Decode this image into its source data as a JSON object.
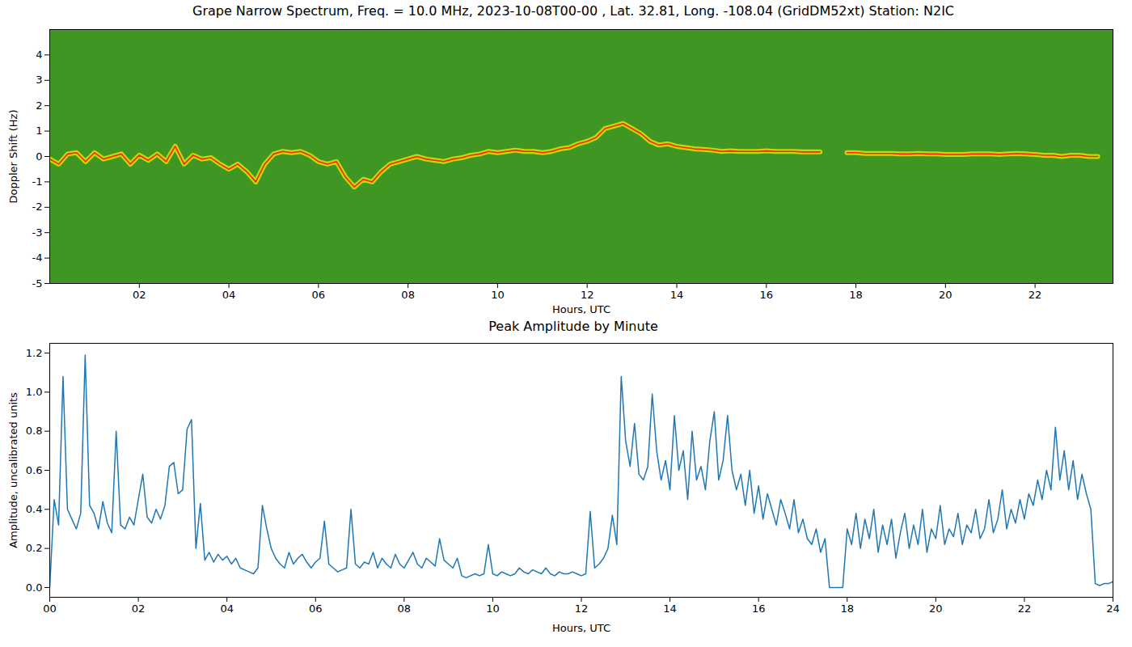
{
  "chart_data": [
    {
      "type": "line",
      "title": "Grape Narrow Spectrum, Freq. = 10.0 MHz, 2023-10-08T00-00 , Lat.  32.81, Long. -108.04 (GridDM52xt) Station: N2IC",
      "x_label": "Hours, UTC",
      "y_label": "Doppler Shift (Hz)",
      "color": "#ff2200",
      "xlim": [
        0,
        23.74
      ],
      "ylim": [
        -5,
        5
      ],
      "xticks": [
        {
          "value": 2,
          "label": "02"
        },
        {
          "value": 4,
          "label": "04"
        },
        {
          "value": 6,
          "label": "06"
        },
        {
          "value": 8,
          "label": "08"
        },
        {
          "value": 10,
          "label": "10"
        },
        {
          "value": 12,
          "label": "12"
        },
        {
          "value": 14,
          "label": "14"
        },
        {
          "value": 16,
          "label": "16"
        },
        {
          "value": 18,
          "label": "18"
        },
        {
          "value": 20,
          "label": "20"
        },
        {
          "value": 22,
          "label": "22"
        }
      ],
      "yticks": [
        -5,
        -4,
        -3,
        -2,
        -1,
        0,
        1,
        2,
        3,
        4
      ],
      "x": [
        0.0,
        0.2,
        0.4,
        0.6,
        0.8,
        1.0,
        1.2,
        1.4,
        1.6,
        1.8,
        2.0,
        2.2,
        2.4,
        2.6,
        2.8,
        3.0,
        3.2,
        3.4,
        3.6,
        3.8,
        4.0,
        4.2,
        4.4,
        4.6,
        4.8,
        5.0,
        5.2,
        5.4,
        5.6,
        5.8,
        6.0,
        6.2,
        6.4,
        6.6,
        6.8,
        7.0,
        7.2,
        7.4,
        7.6,
        7.8,
        8.0,
        8.2,
        8.4,
        8.6,
        8.8,
        9.0,
        9.2,
        9.4,
        9.6,
        9.8,
        10.0,
        10.2,
        10.4,
        10.6,
        10.8,
        11.0,
        11.2,
        11.4,
        11.6,
        11.8,
        12.0,
        12.2,
        12.4,
        12.6,
        12.8,
        13.0,
        13.2,
        13.4,
        13.6,
        13.8,
        14.0,
        14.2,
        14.4,
        14.6,
        14.8,
        15.0,
        15.2,
        15.4,
        15.6,
        15.8,
        16.0,
        16.2,
        16.4,
        16.6,
        16.8,
        17.0,
        17.2,
        17.4,
        17.6,
        17.8,
        18.0,
        18.2,
        18.4,
        18.6,
        18.8,
        19.0,
        19.2,
        19.4,
        19.6,
        19.8,
        20.0,
        20.2,
        20.4,
        20.6,
        20.8,
        21.0,
        21.2,
        21.4,
        21.6,
        21.8,
        22.0,
        22.2,
        22.4,
        22.6,
        22.8,
        23.0,
        23.2,
        23.4
      ],
      "values": [
        -0.1,
        -0.3,
        0.1,
        0.15,
        -0.2,
        0.15,
        -0.1,
        0.0,
        0.1,
        -0.3,
        0.05,
        -0.15,
        0.1,
        -0.2,
        0.4,
        -0.3,
        0.05,
        -0.1,
        -0.05,
        -0.3,
        -0.5,
        -0.3,
        -0.6,
        -1.0,
        -0.3,
        0.1,
        0.2,
        0.15,
        0.2,
        0.05,
        -0.2,
        -0.3,
        -0.2,
        -0.8,
        -1.2,
        -0.9,
        -1.0,
        -0.6,
        -0.3,
        -0.2,
        -0.1,
        0.0,
        -0.1,
        -0.15,
        -0.2,
        -0.1,
        -0.05,
        0.05,
        0.1,
        0.2,
        0.15,
        0.2,
        0.25,
        0.2,
        0.2,
        0.15,
        0.2,
        0.3,
        0.35,
        0.5,
        0.6,
        0.75,
        1.1,
        1.2,
        1.3,
        1.1,
        0.9,
        0.6,
        0.45,
        0.5,
        0.4,
        0.35,
        0.3,
        0.28,
        0.25,
        0.2,
        0.22,
        0.2,
        0.2,
        0.2,
        0.22,
        0.2,
        0.2,
        0.2,
        0.18,
        0.18,
        0.18,
        null,
        null,
        0.15,
        0.15,
        0.12,
        0.12,
        0.12,
        0.12,
        0.1,
        0.1,
        0.12,
        0.1,
        0.1,
        0.08,
        0.08,
        0.08,
        0.1,
        0.1,
        0.1,
        0.08,
        0.1,
        0.12,
        0.1,
        0.08,
        0.05,
        0.05,
        0.0,
        0.05,
        0.05,
        0.0,
        0.0
      ]
    },
    {
      "type": "line",
      "title": "Peak Amplitude by Minute",
      "x_label": "Hours, UTC",
      "y_label": "Amplitude, uncalibrated units",
      "color": "#1f77b4",
      "xlim": [
        0,
        24
      ],
      "ylim": [
        -0.05,
        1.25
      ],
      "xticks": [
        {
          "value": 0,
          "label": "00"
        },
        {
          "value": 2,
          "label": "02"
        },
        {
          "value": 4,
          "label": "04"
        },
        {
          "value": 6,
          "label": "06"
        },
        {
          "value": 8,
          "label": "08"
        },
        {
          "value": 10,
          "label": "10"
        },
        {
          "value": 12,
          "label": "12"
        },
        {
          "value": 14,
          "label": "14"
        },
        {
          "value": 16,
          "label": "16"
        },
        {
          "value": 18,
          "label": "18"
        },
        {
          "value": 20,
          "label": "20"
        },
        {
          "value": 22,
          "label": "22"
        },
        {
          "value": 24,
          "label": "24"
        }
      ],
      "yticks": [
        {
          "value": 0,
          "label": "0.0"
        },
        0.2,
        0.4,
        0.6,
        0.8,
        {
          "value": 1,
          "label": "1.0"
        },
        1.2
      ],
      "x": [
        0.0,
        0.1,
        0.2,
        0.3,
        0.4,
        0.5,
        0.6,
        0.7,
        0.8,
        0.9,
        1.0,
        1.1,
        1.2,
        1.3,
        1.4,
        1.5,
        1.6,
        1.7,
        1.8,
        1.9,
        2.0,
        2.1,
        2.2,
        2.3,
        2.4,
        2.5,
        2.6,
        2.7,
        2.8,
        2.9,
        3.0,
        3.1,
        3.2,
        3.3,
        3.4,
        3.5,
        3.6,
        3.7,
        3.8,
        3.9,
        4.0,
        4.1,
        4.2,
        4.3,
        4.4,
        4.5,
        4.6,
        4.7,
        4.8,
        4.9,
        5.0,
        5.1,
        5.2,
        5.3,
        5.4,
        5.5,
        5.6,
        5.7,
        5.8,
        5.9,
        6.0,
        6.1,
        6.2,
        6.3,
        6.4,
        6.5,
        6.6,
        6.7,
        6.8,
        6.9,
        7.0,
        7.1,
        7.2,
        7.3,
        7.4,
        7.5,
        7.6,
        7.7,
        7.8,
        7.9,
        8.0,
        8.1,
        8.2,
        8.3,
        8.4,
        8.5,
        8.6,
        8.7,
        8.8,
        8.9,
        9.0,
        9.1,
        9.2,
        9.3,
        9.4,
        9.5,
        9.6,
        9.7,
        9.8,
        9.9,
        10.0,
        10.1,
        10.2,
        10.3,
        10.4,
        10.5,
        10.6,
        10.7,
        10.8,
        10.9,
        11.0,
        11.1,
        11.2,
        11.3,
        11.4,
        11.5,
        11.6,
        11.7,
        11.8,
        11.9,
        12.0,
        12.1,
        12.2,
        12.3,
        12.4,
        12.5,
        12.6,
        12.7,
        12.8,
        12.9,
        13.0,
        13.1,
        13.2,
        13.3,
        13.4,
        13.5,
        13.6,
        13.7,
        13.8,
        13.9,
        14.0,
        14.1,
        14.2,
        14.3,
        14.4,
        14.5,
        14.6,
        14.7,
        14.8,
        14.9,
        15.0,
        15.1,
        15.2,
        15.3,
        15.4,
        15.5,
        15.6,
        15.7,
        15.8,
        15.9,
        16.0,
        16.1,
        16.2,
        16.3,
        16.4,
        16.5,
        16.6,
        16.7,
        16.8,
        16.9,
        17.0,
        17.1,
        17.2,
        17.3,
        17.4,
        17.5,
        17.6,
        17.7,
        17.8,
        17.9,
        18.0,
        18.1,
        18.2,
        18.3,
        18.4,
        18.5,
        18.6,
        18.7,
        18.8,
        18.9,
        19.0,
        19.1,
        19.2,
        19.3,
        19.4,
        19.5,
        19.6,
        19.7,
        19.8,
        19.9,
        20.0,
        20.1,
        20.2,
        20.3,
        20.4,
        20.5,
        20.6,
        20.7,
        20.8,
        20.9,
        21.0,
        21.1,
        21.2,
        21.3,
        21.4,
        21.5,
        21.6,
        21.7,
        21.8,
        21.9,
        22.0,
        22.1,
        22.2,
        22.3,
        22.4,
        22.5,
        22.6,
        22.7,
        22.8,
        22.9,
        23.0,
        23.1,
        23.2,
        23.3,
        23.4,
        23.5,
        23.6,
        23.7,
        23.8,
        23.9,
        24.0
      ],
      "values": [
        0.0,
        0.45,
        0.32,
        1.08,
        0.4,
        0.35,
        0.3,
        0.38,
        1.19,
        0.42,
        0.38,
        0.3,
        0.44,
        0.33,
        0.28,
        0.8,
        0.32,
        0.3,
        0.36,
        0.32,
        0.45,
        0.58,
        0.36,
        0.33,
        0.4,
        0.35,
        0.42,
        0.62,
        0.64,
        0.48,
        0.5,
        0.81,
        0.86,
        0.2,
        0.43,
        0.14,
        0.18,
        0.13,
        0.17,
        0.14,
        0.16,
        0.12,
        0.15,
        0.1,
        0.09,
        0.08,
        0.07,
        0.1,
        0.42,
        0.3,
        0.2,
        0.15,
        0.12,
        0.1,
        0.18,
        0.12,
        0.15,
        0.17,
        0.13,
        0.1,
        0.13,
        0.15,
        0.34,
        0.12,
        0.1,
        0.08,
        0.09,
        0.1,
        0.4,
        0.12,
        0.1,
        0.13,
        0.12,
        0.18,
        0.1,
        0.15,
        0.12,
        0.1,
        0.17,
        0.12,
        0.1,
        0.14,
        0.18,
        0.12,
        0.1,
        0.15,
        0.13,
        0.11,
        0.25,
        0.14,
        0.12,
        0.1,
        0.15,
        0.06,
        0.05,
        0.06,
        0.07,
        0.06,
        0.07,
        0.22,
        0.07,
        0.06,
        0.08,
        0.07,
        0.06,
        0.07,
        0.1,
        0.08,
        0.07,
        0.09,
        0.08,
        0.07,
        0.1,
        0.07,
        0.06,
        0.08,
        0.07,
        0.07,
        0.08,
        0.07,
        0.06,
        0.07,
        0.39,
        0.1,
        0.12,
        0.15,
        0.2,
        0.37,
        0.22,
        1.08,
        0.75,
        0.62,
        0.84,
        0.58,
        0.55,
        0.62,
        0.99,
        0.7,
        0.55,
        0.65,
        0.5,
        0.88,
        0.6,
        0.7,
        0.45,
        0.8,
        0.55,
        0.62,
        0.5,
        0.75,
        0.9,
        0.55,
        0.65,
        0.88,
        0.6,
        0.5,
        0.58,
        0.42,
        0.6,
        0.38,
        0.52,
        0.35,
        0.48,
        0.4,
        0.32,
        0.45,
        0.38,
        0.3,
        0.45,
        0.28,
        0.35,
        0.25,
        0.22,
        0.3,
        0.18,
        0.25,
        0.0,
        0.0,
        0.0,
        0.0,
        0.3,
        0.22,
        0.38,
        0.2,
        0.35,
        0.25,
        0.4,
        0.18,
        0.32,
        0.22,
        0.35,
        0.15,
        0.28,
        0.38,
        0.2,
        0.32,
        0.22,
        0.4,
        0.18,
        0.3,
        0.25,
        0.42,
        0.22,
        0.3,
        0.26,
        0.38,
        0.22,
        0.32,
        0.28,
        0.4,
        0.25,
        0.3,
        0.45,
        0.28,
        0.35,
        0.5,
        0.3,
        0.4,
        0.33,
        0.45,
        0.35,
        0.48,
        0.42,
        0.55,
        0.45,
        0.6,
        0.5,
        0.82,
        0.55,
        0.7,
        0.5,
        0.65,
        0.45,
        0.58,
        0.48,
        0.4,
        0.02,
        0.01,
        0.02,
        0.02,
        0.03
      ]
    }
  ]
}
